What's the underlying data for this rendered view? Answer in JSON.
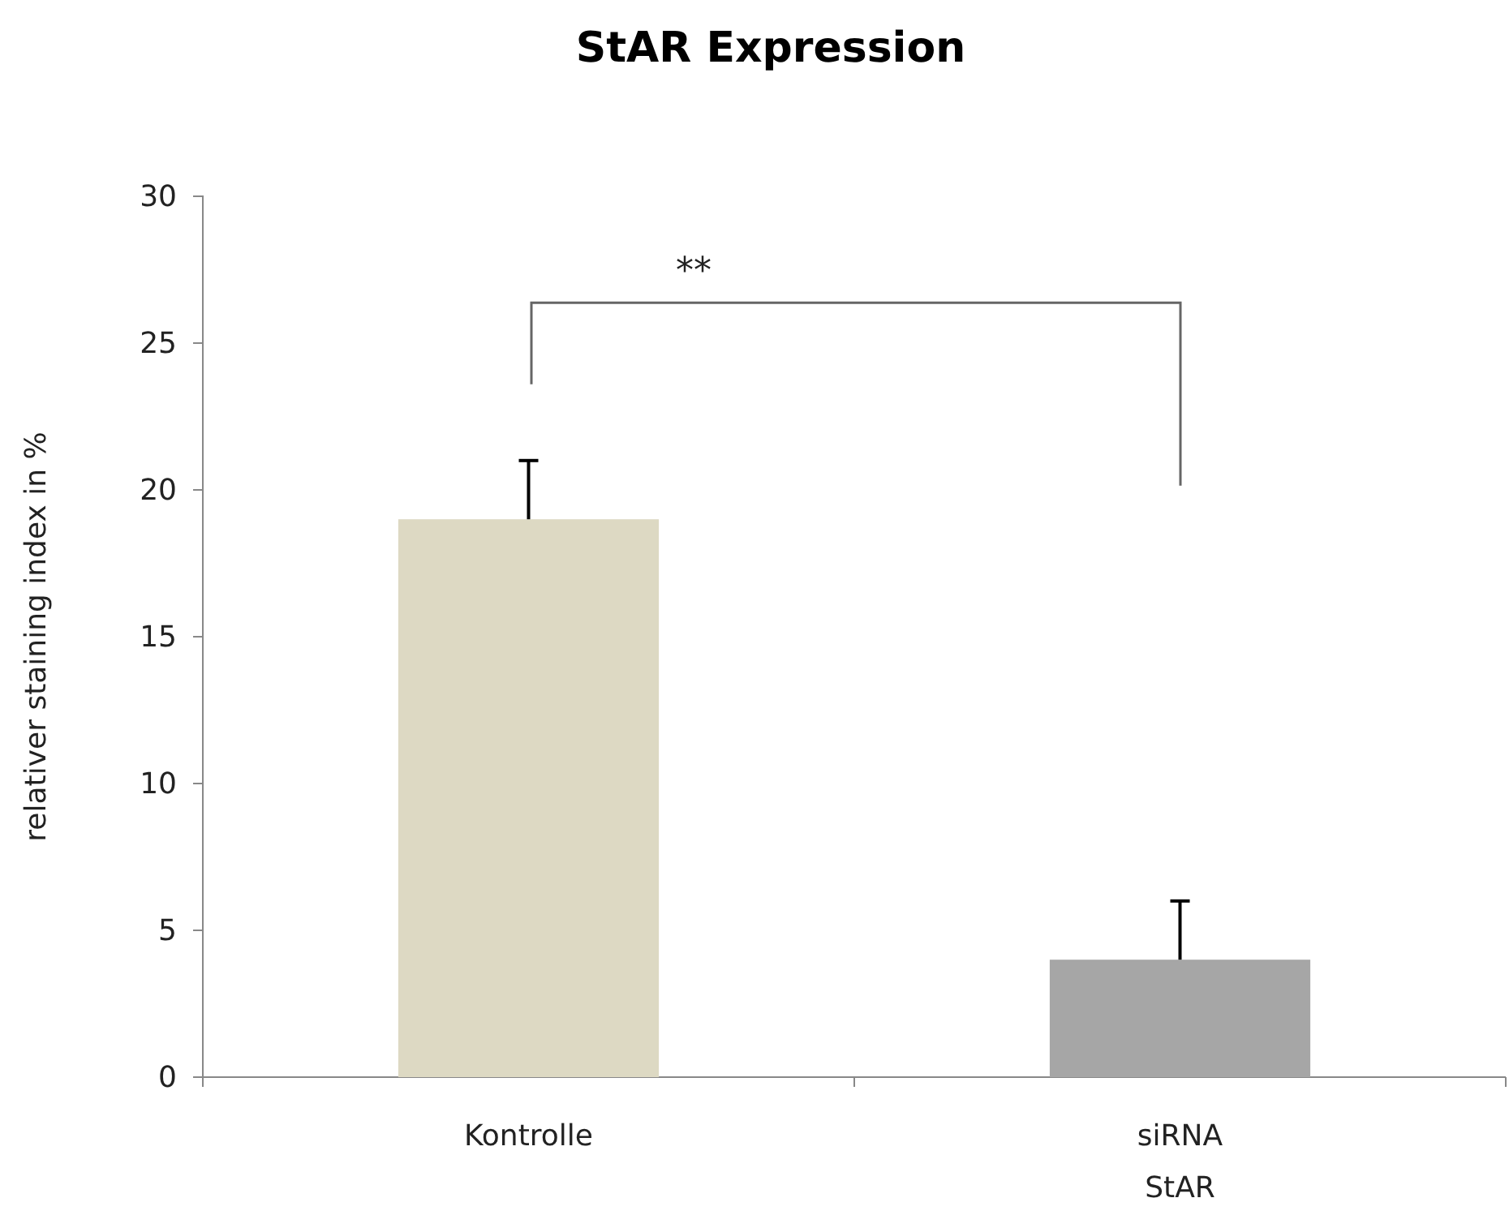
{
  "chart_data": {
    "type": "bar",
    "title": "StAR Expression",
    "ylabel": "relativer staining index in %",
    "categories": [
      "Kontrolle",
      "siRNA StAR"
    ],
    "values": [
      19,
      4
    ],
    "colors": [
      "#ddd9c3",
      "#a6a6a6"
    ],
    "errors": [
      [
        19,
        21
      ],
      [
        4,
        6
      ]
    ],
    "ylim": [
      0,
      30
    ],
    "yticks": [
      0,
      5,
      10,
      15,
      20,
      25,
      30
    ],
    "grid": false,
    "annotations": [
      "**"
    ]
  }
}
